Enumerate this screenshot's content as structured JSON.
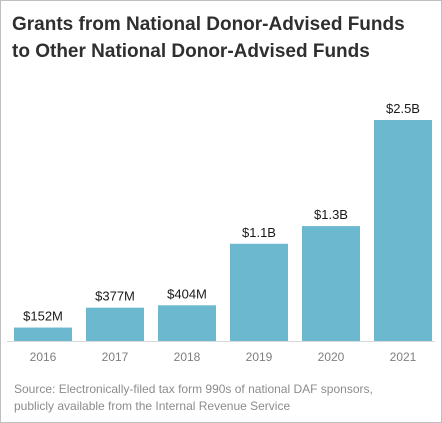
{
  "title_lines": [
    "Grants from National Donor-Advised Funds",
    "to Other National Donor-Advised Funds"
  ],
  "source_lines": [
    "Source: Electronically-filed tax form 990s of national DAF sponsors,",
    "publicly available from the Internal Revenue Service"
  ],
  "colors": {
    "bar": "#6cb8cf",
    "axis": "#d9d9d9",
    "title": "#2f2f2f",
    "label": "#1a1a1a",
    "tick": "#7f7f7f",
    "source": "#8c8c8c"
  },
  "chart_data": {
    "type": "bar",
    "categories": [
      "2016",
      "2017",
      "2018",
      "2019",
      "2020",
      "2021"
    ],
    "values": [
      152,
      377,
      404,
      1100,
      1300,
      2500
    ],
    "value_units": "$M",
    "data_labels": [
      "$152M",
      "$377M",
      "$404M",
      "$1.1B",
      "$1.3B",
      "$2.5B"
    ],
    "ylim": [
      0,
      2500
    ],
    "grid": false,
    "xlabel": "",
    "ylabel": ""
  }
}
